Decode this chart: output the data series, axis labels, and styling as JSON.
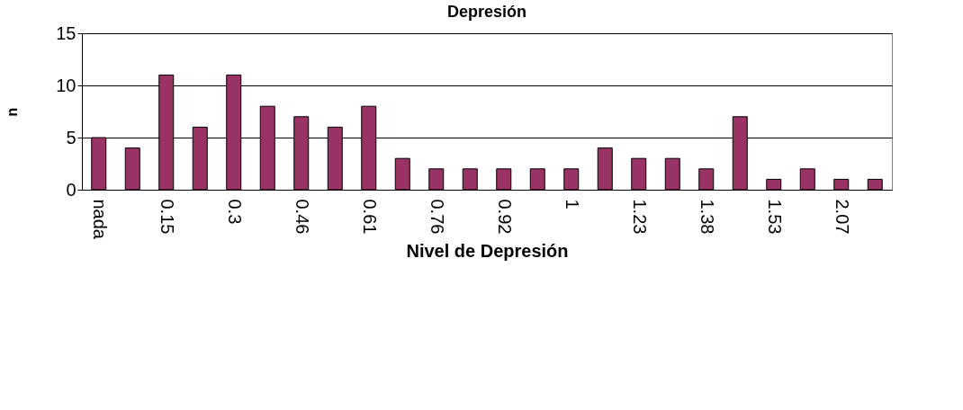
{
  "chart_data": {
    "type": "bar",
    "title": "Depresión",
    "xlabel": "Nivel de Depresión",
    "ylabel": "n",
    "categories": [
      "nada",
      null,
      "0.15",
      null,
      "0.3",
      null,
      "0.46",
      null,
      "0.61",
      null,
      "0.76",
      null,
      "0.92",
      null,
      "1",
      null,
      "1.23",
      null,
      "1.38",
      null,
      "1.53",
      null,
      "2.07",
      null
    ],
    "values": [
      5,
      4,
      11,
      6,
      11,
      8,
      7,
      6,
      8,
      3,
      2,
      2,
      2,
      2,
      2,
      4,
      3,
      3,
      2,
      7,
      1,
      2,
      1,
      1
    ],
    "color": "#993366",
    "ylim": [
      0,
      15
    ],
    "yticks": [
      0,
      5,
      10,
      15
    ],
    "grid": "y"
  }
}
